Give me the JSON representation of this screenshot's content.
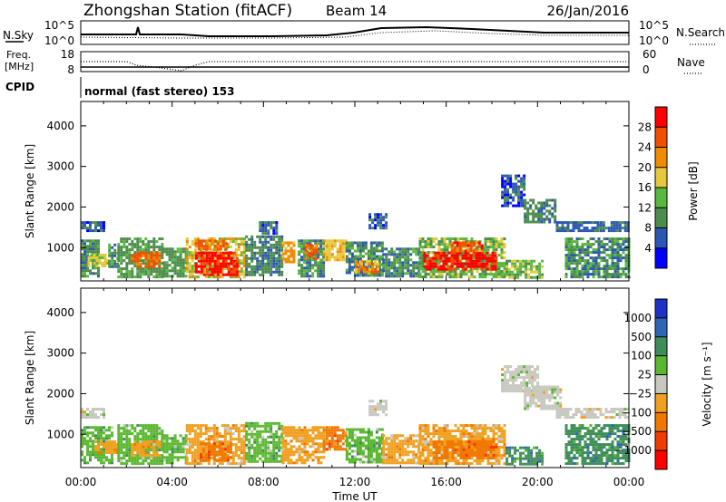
{
  "header": {
    "station": "Zhongshan Station (fitACF)",
    "beam": "Beam 14",
    "date": "26/Jan/2016"
  },
  "noise_panel": {
    "left_label": "N.Sky",
    "left_ticks": [
      "10^5",
      "10^0"
    ],
    "right_label": "N.Search",
    "right_ticks": [
      "10^5",
      "10^0"
    ]
  },
  "freq_panel": {
    "left_label_1": "Freq.",
    "left_label_2": "[MHz]",
    "left_ticks": [
      "18",
      "8"
    ],
    "right_label": "Nave",
    "right_ticks": [
      "60",
      "0"
    ]
  },
  "cpid": {
    "label": "CPID",
    "mode": "normal (fast stereo) 153"
  },
  "colors": {
    "power_scale": [
      "#0000ff",
      "#2c58b4",
      "#4c8c4c",
      "#59b83e",
      "#e6c83e",
      "#f08c00",
      "#f05000",
      "#ff0000"
    ],
    "velocity_scale": [
      "#1e32c8",
      "#2c66b4",
      "#3f8e5a",
      "#5ab830",
      "#c8c8c0",
      "#f0a020",
      "#f07800",
      "#f03c00",
      "#ff0000"
    ]
  },
  "chart_data": [
    {
      "type": "heatmap",
      "name": "power",
      "ylabel": "Slant Range [km]",
      "y_ticks": [
        1000,
        2000,
        3000,
        4000
      ],
      "ylim": [
        180,
        4600
      ],
      "x_ticks": [
        "00:00",
        "04:00",
        "08:00",
        "12:00",
        "16:00",
        "20:00",
        "00:00"
      ],
      "xlim_hours": [
        0,
        24
      ],
      "colorbar_label": "Power [dB]",
      "colorbar_ticks": [
        4,
        8,
        12,
        16,
        20,
        24,
        28
      ],
      "colorbar_range": [
        0,
        32
      ],
      "regions": [
        {
          "t0": 0.0,
          "t1": 1.0,
          "r0": 1400,
          "r1": 1650,
          "v": 6
        },
        {
          "t0": 0.0,
          "t1": 0.8,
          "r0": 300,
          "r1": 1200,
          "v": 9
        },
        {
          "t0": 0.3,
          "t1": 1.2,
          "r0": 550,
          "r1": 850,
          "v": 16
        },
        {
          "t0": 1.2,
          "t1": 1.6,
          "r0": 500,
          "r1": 1100,
          "v": 10
        },
        {
          "t0": 1.6,
          "t1": 3.6,
          "r0": 300,
          "r1": 1250,
          "v": 11
        },
        {
          "t0": 2.2,
          "t1": 3.4,
          "r0": 550,
          "r1": 900,
          "v": 24
        },
        {
          "t0": 3.6,
          "t1": 4.6,
          "r0": 300,
          "r1": 1000,
          "v": 11
        },
        {
          "t0": 4.6,
          "t1": 7.2,
          "r0": 250,
          "r1": 1250,
          "v": 17
        },
        {
          "t0": 5.0,
          "t1": 6.8,
          "r0": 300,
          "r1": 900,
          "v": 30
        },
        {
          "t0": 5.0,
          "t1": 6.4,
          "r0": 950,
          "r1": 1200,
          "v": 24
        },
        {
          "t0": 7.2,
          "t1": 8.8,
          "r0": 300,
          "r1": 1300,
          "v": 8
        },
        {
          "t0": 7.8,
          "t1": 8.6,
          "r0": 1350,
          "r1": 1650,
          "v": 6
        },
        {
          "t0": 8.8,
          "t1": 9.3,
          "r0": 650,
          "r1": 1150,
          "v": 20
        },
        {
          "t0": 9.5,
          "t1": 10.6,
          "r0": 300,
          "r1": 1200,
          "v": 9
        },
        {
          "t0": 9.8,
          "t1": 10.3,
          "r0": 750,
          "r1": 1100,
          "v": 24
        },
        {
          "t0": 10.6,
          "t1": 11.6,
          "r0": 700,
          "r1": 1200,
          "v": 19
        },
        {
          "t0": 11.6,
          "t1": 13.2,
          "r0": 300,
          "r1": 1150,
          "v": 10
        },
        {
          "t0": 12.0,
          "t1": 13.0,
          "r0": 400,
          "r1": 700,
          "v": 22
        },
        {
          "t0": 12.6,
          "t1": 13.4,
          "r0": 1500,
          "r1": 1850,
          "v": 6
        },
        {
          "t0": 13.2,
          "t1": 14.8,
          "r0": 300,
          "r1": 1000,
          "v": 10
        },
        {
          "t0": 14.8,
          "t1": 18.6,
          "r0": 250,
          "r1": 1250,
          "v": 14
        },
        {
          "t0": 15.0,
          "t1": 18.2,
          "r0": 450,
          "r1": 900,
          "v": 28
        },
        {
          "t0": 16.2,
          "t1": 17.6,
          "r0": 900,
          "r1": 1150,
          "v": 25
        },
        {
          "t0": 18.6,
          "t1": 20.2,
          "r0": 250,
          "r1": 700,
          "v": 13
        },
        {
          "t0": 18.4,
          "t1": 19.4,
          "r0": 2050,
          "r1": 2800,
          "v": 6
        },
        {
          "t0": 19.4,
          "t1": 20.8,
          "r0": 1600,
          "r1": 2200,
          "v": 8
        },
        {
          "t0": 20.8,
          "t1": 22.6,
          "r0": 1400,
          "r1": 1650,
          "v": 7
        },
        {
          "t0": 21.2,
          "t1": 24.0,
          "r0": 250,
          "r1": 1250,
          "v": 10
        },
        {
          "t0": 22.6,
          "t1": 24.0,
          "r0": 1400,
          "r1": 1650,
          "v": 7
        }
      ]
    },
    {
      "type": "heatmap",
      "name": "velocity",
      "ylabel": "Slant Range [km]",
      "y_ticks": [
        1000,
        2000,
        3000,
        4000
      ],
      "ylim": [
        180,
        4600
      ],
      "x_ticks": [
        "00:00",
        "04:00",
        "08:00",
        "12:00",
        "16:00",
        "20:00",
        "00:00"
      ],
      "xlim_hours": [
        0,
        24
      ],
      "xlabel": "Time UT",
      "colorbar_label": "Velocity [m s⁻¹]",
      "colorbar_ticks": [
        "1000",
        "500",
        "100",
        "25",
        "−25",
        "−100",
        "−500",
        "−1000"
      ],
      "regions": [
        {
          "t0": 0.0,
          "t1": 1.0,
          "r0": 1400,
          "r1": 1650,
          "v": 4
        },
        {
          "t0": 0.0,
          "t1": 1.4,
          "r0": 300,
          "r1": 1200,
          "v": 3
        },
        {
          "t0": 0.6,
          "t1": 1.6,
          "r0": 550,
          "r1": 850,
          "v": 5
        },
        {
          "t0": 1.6,
          "t1": 3.6,
          "r0": 300,
          "r1": 1250,
          "v": 3
        },
        {
          "t0": 2.2,
          "t1": 3.4,
          "r0": 500,
          "r1": 850,
          "v": 5
        },
        {
          "t0": 3.6,
          "t1": 4.6,
          "r0": 300,
          "r1": 1000,
          "v": 3
        },
        {
          "t0": 4.6,
          "t1": 7.2,
          "r0": 250,
          "r1": 1250,
          "v": 5
        },
        {
          "t0": 5.2,
          "t1": 6.6,
          "r0": 350,
          "r1": 800,
          "v": 6
        },
        {
          "t0": 7.2,
          "t1": 8.8,
          "r0": 300,
          "r1": 1300,
          "v": 3
        },
        {
          "t0": 8.8,
          "t1": 10.6,
          "r0": 300,
          "r1": 1200,
          "v": 5
        },
        {
          "t0": 10.6,
          "t1": 11.6,
          "r0": 600,
          "r1": 1200,
          "v": 6
        },
        {
          "t0": 11.6,
          "t1": 13.2,
          "r0": 300,
          "r1": 1150,
          "v": 3
        },
        {
          "t0": 12.6,
          "t1": 13.4,
          "r0": 1500,
          "r1": 1850,
          "v": 4
        },
        {
          "t0": 13.2,
          "t1": 14.8,
          "r0": 300,
          "r1": 1000,
          "v": 5
        },
        {
          "t0": 14.8,
          "t1": 18.6,
          "r0": 250,
          "r1": 1250,
          "v": 5
        },
        {
          "t0": 15.4,
          "t1": 18.2,
          "r0": 400,
          "r1": 850,
          "v": 6
        },
        {
          "t0": 18.6,
          "t1": 20.2,
          "r0": 250,
          "r1": 700,
          "v": 2
        },
        {
          "t0": 18.4,
          "t1": 20.0,
          "r0": 2050,
          "r1": 2700,
          "v": 4
        },
        {
          "t0": 19.4,
          "t1": 21.0,
          "r0": 1600,
          "r1": 2200,
          "v": 4
        },
        {
          "t0": 20.8,
          "t1": 24.0,
          "r0": 1400,
          "r1": 1650,
          "v": 4
        },
        {
          "t0": 21.2,
          "t1": 24.0,
          "r0": 250,
          "r1": 1250,
          "v": 2
        }
      ]
    }
  ]
}
